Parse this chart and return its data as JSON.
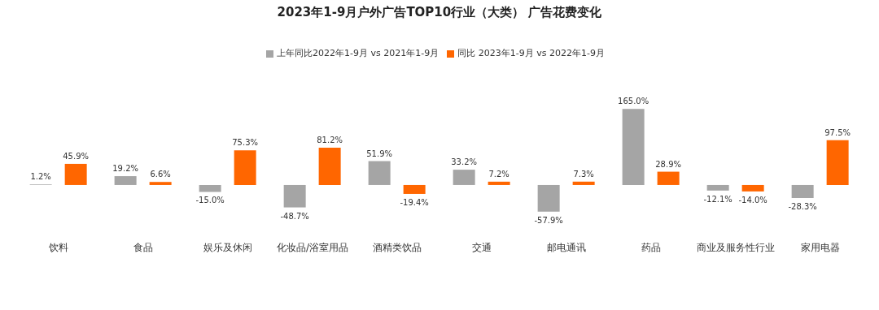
{
  "chart_data": {
    "type": "bar",
    "title": "2023年1-9月户外广告TOP10行业（大类） 广告花费变化",
    "categories": [
      "饮料",
      "食品",
      "娱乐及休闲",
      "化妆品/浴室用品",
      "酒精类饮品",
      "交通",
      "邮电通讯",
      "药品",
      "商业及服务性行业",
      "家用电器"
    ],
    "series": [
      {
        "name": "上年同比2022年1-9月 vs 2021年1-9月",
        "color": "#a5a5a5",
        "values": [
          1.2,
          19.2,
          -15.0,
          -48.7,
          51.9,
          33.2,
          -57.9,
          165.0,
          -12.1,
          -28.3
        ],
        "value_labels": [
          "1.2%",
          "19.2%",
          "-15.0%",
          "-48.7%",
          "51.9%",
          "33.2%",
          "-57.9%",
          "165.0%",
          "-12.1%",
          "-28.3%"
        ]
      },
      {
        "name": "同比 2023年1-9月 vs 2022年1-9月",
        "color": "#ff6600",
        "values": [
          45.9,
          6.6,
          75.3,
          81.2,
          -19.4,
          7.2,
          7.3,
          28.9,
          -14.0,
          97.5
        ],
        "value_labels": [
          "45.9%",
          "6.6%",
          "75.3%",
          "81.2%",
          "-19.4%",
          "7.2%",
          "7.3%",
          "28.9%",
          "-14.0%",
          "97.5%"
        ]
      }
    ],
    "legend": "top",
    "grid": false
  }
}
